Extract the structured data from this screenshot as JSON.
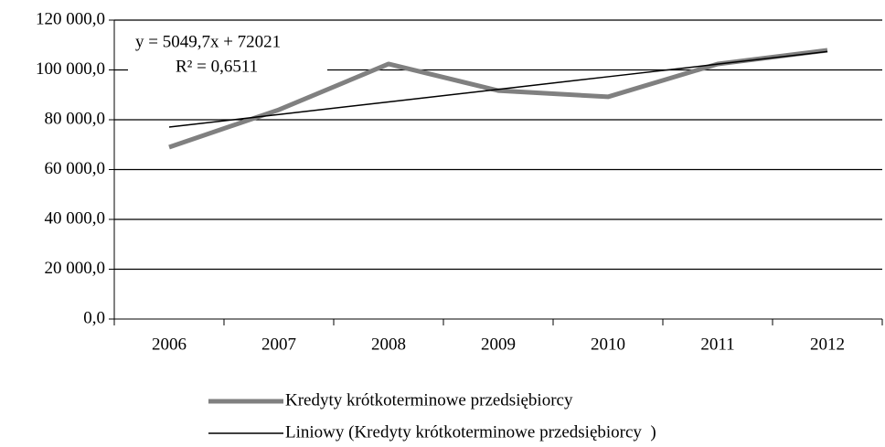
{
  "chart_data": {
    "type": "line",
    "categories": [
      "2006",
      "2007",
      "2008",
      "2009",
      "2010",
      "2011",
      "2012"
    ],
    "series": [
      {
        "name": "Kredyty krótkoterminowe przedsiębiorcy",
        "color": "#808080",
        "values": [
          69000,
          84000,
          102400,
          91700,
          89200,
          102400,
          107900
        ]
      },
      {
        "name": "Liniowy (Kredyty krótkoterminowe przedsiębiorcy  )",
        "color": "#000000",
        "values": [
          77070.7,
          82120.4,
          87170.1,
          92219.8,
          97269.5,
          102319.2,
          107368.9
        ]
      }
    ],
    "annotations": [
      "y = 5049,7x + 72021",
      "R² = 0,6511"
    ],
    "ylim": [
      0,
      120000
    ],
    "yticks": [
      {
        "value": 0,
        "label": "0,0"
      },
      {
        "value": 20000,
        "label": "20 000,0"
      },
      {
        "value": 40000,
        "label": "40 000,0"
      },
      {
        "value": 60000,
        "label": "60 000,0"
      },
      {
        "value": 80000,
        "label": "80 000,0"
      },
      {
        "value": 100000,
        "label": "100 000,0"
      },
      {
        "value": 120000,
        "label": "120 000,0"
      }
    ],
    "grid": true,
    "legend": "bottom"
  }
}
